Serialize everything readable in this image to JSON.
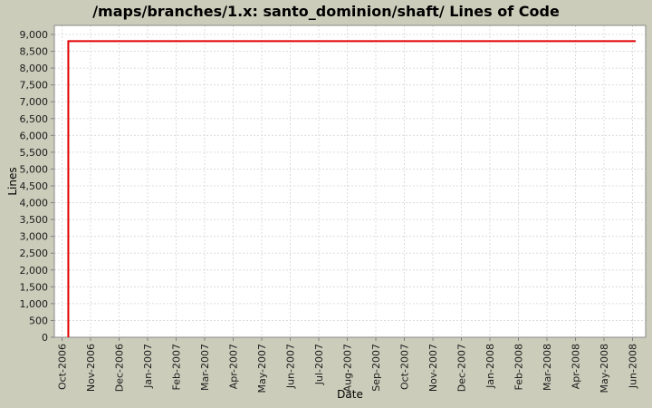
{
  "chart_data": {
    "type": "line",
    "title": "/maps/branches/1.x: santo_dominion/shaft/ Lines of Code",
    "xlabel": "Date",
    "ylabel": "Lines",
    "ylim": [
      0,
      9000
    ],
    "y_tick_step": 500,
    "y_tick_values": [
      0,
      500,
      1000,
      1500,
      2000,
      2500,
      3000,
      3500,
      4000,
      4500,
      5000,
      5500,
      6000,
      6500,
      7000,
      7500,
      8000,
      8500,
      9000
    ],
    "y_tick_labels": [
      "0",
      "500",
      "1,000",
      "1,500",
      "2,000",
      "2,500",
      "3,000",
      "3,500",
      "4,000",
      "4,500",
      "5,000",
      "5,500",
      "6,000",
      "6,500",
      "7,000",
      "7,500",
      "8,000",
      "8,500",
      "9,000"
    ],
    "x_tick_labels": [
      "Oct-2006",
      "Nov-2006",
      "Dec-2006",
      "Jan-2007",
      "Feb-2007",
      "Mar-2007",
      "Apr-2007",
      "May-2007",
      "Jun-2007",
      "Jul-2007",
      "Aug-2007",
      "Sep-2007",
      "Oct-2007",
      "Nov-2007",
      "Dec-2007",
      "Jan-2008",
      "Feb-2008",
      "Mar-2008",
      "Apr-2008",
      "May-2008",
      "Jun-2008"
    ],
    "grid": "dashed",
    "legend": "none",
    "series": [
      {
        "name": "Lines of Code",
        "color": "#e00000",
        "points_month_value": [
          [
            0.22,
            0
          ],
          [
            0.22,
            8800
          ],
          [
            20.11,
            8800
          ]
        ]
      }
    ],
    "colors": {
      "background": "#cbccba",
      "plot_background": "#ffffff",
      "plot_border": "#8a8a8a",
      "grid": "#dcdcdc",
      "tick": "#808080",
      "line": "#e00000",
      "text": "#000000"
    }
  }
}
